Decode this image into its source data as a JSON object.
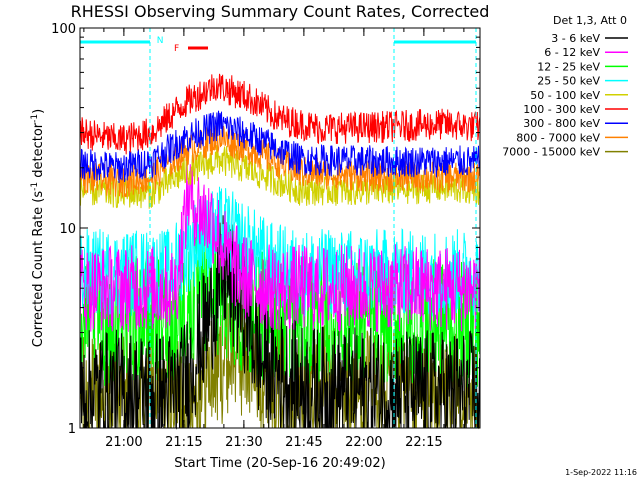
{
  "chart_data": {
    "type": "line",
    "title": "RHESSI Observing Summary Count Rates, Corrected",
    "xlabel": "Start Time (20-Sep-16 20:49:02)",
    "ylabel_main": "Corrected Count Rate (s",
    "ylabel_sup1": "-1",
    "ylabel_mid": " detector",
    "ylabel_sup2": "-1",
    "ylabel_end": ")",
    "yscale": "log",
    "ylim": [
      1,
      100
    ],
    "y_ticks": [
      {
        "value": 1,
        "label": "1"
      },
      {
        "value": 10,
        "label": "10"
      },
      {
        "value": 100,
        "label": "100"
      }
    ],
    "xlim_minutes_after_start": [
      0,
      100
    ],
    "x_ticks": [
      {
        "minute": 10.97,
        "label": "21:00"
      },
      {
        "minute": 25.97,
        "label": "21:15"
      },
      {
        "minute": 40.97,
        "label": "21:30"
      },
      {
        "minute": 55.97,
        "label": "21:45"
      },
      {
        "minute": 70.97,
        "label": "22:00"
      },
      {
        "minute": 85.97,
        "label": "22:15"
      }
    ],
    "legend_header": "Det 1,3, Att 0",
    "legend_placement": "right, outside plot",
    "series": [
      {
        "name": "3 - 6 keV",
        "color": "#000000",
        "points": [
          [
            0,
            1.5
          ],
          [
            25,
            1.5
          ],
          [
            31,
            3
          ],
          [
            36,
            6
          ],
          [
            41,
            4
          ],
          [
            45,
            2.2
          ],
          [
            55,
            1.6
          ],
          [
            80,
            1.5
          ],
          [
            100,
            1.5
          ]
        ]
      },
      {
        "name": "6 - 12 keV",
        "color": "#ff00ff",
        "points": [
          [
            0,
            5
          ],
          [
            24,
            5
          ],
          [
            27,
            15
          ],
          [
            30,
            12
          ],
          [
            33,
            11
          ],
          [
            37,
            7
          ],
          [
            42,
            5.5
          ],
          [
            48,
            5
          ],
          [
            100,
            5
          ]
        ]
      },
      {
        "name": "12 - 25 keV",
        "color": "#00ff00",
        "points": [
          [
            0,
            3.3
          ],
          [
            25,
            3.6
          ],
          [
            32,
            5
          ],
          [
            40,
            4
          ],
          [
            48,
            3.5
          ],
          [
            100,
            3.3
          ]
        ]
      },
      {
        "name": "25 - 50 keV",
        "color": "#00ffff",
        "points": [
          [
            0,
            6
          ],
          [
            22,
            6
          ],
          [
            30,
            9
          ],
          [
            36,
            10
          ],
          [
            42,
            8
          ],
          [
            48,
            6.5
          ],
          [
            55,
            6
          ],
          [
            100,
            6
          ]
        ]
      },
      {
        "name": "50 - 100 keV",
        "color": "#d0d000",
        "points": [
          [
            0,
            15.5
          ],
          [
            10,
            15
          ],
          [
            18,
            15
          ],
          [
            26,
            19
          ],
          [
            35,
            22
          ],
          [
            44,
            19
          ],
          [
            55,
            15.5
          ],
          [
            75,
            15.5
          ],
          [
            90,
            16
          ],
          [
            100,
            15.5
          ]
        ]
      },
      {
        "name": "100 - 300 keV",
        "color": "#ff0000",
        "points": [
          [
            0,
            30
          ],
          [
            10,
            27.5
          ],
          [
            18,
            30
          ],
          [
            26,
            42
          ],
          [
            34,
            52
          ],
          [
            42,
            45
          ],
          [
            50,
            35
          ],
          [
            60,
            31.5
          ],
          [
            75,
            32
          ],
          [
            90,
            33
          ],
          [
            100,
            32
          ]
        ]
      },
      {
        "name": "300 - 800 keV",
        "color": "#0000ff",
        "points": [
          [
            0,
            21
          ],
          [
            10,
            20
          ],
          [
            18,
            21.5
          ],
          [
            26,
            28
          ],
          [
            35,
            33
          ],
          [
            44,
            28
          ],
          [
            55,
            22
          ],
          [
            75,
            21.5
          ],
          [
            100,
            21.5
          ]
        ]
      },
      {
        "name": "800 - 7000 keV",
        "color": "#ff8000",
        "points": [
          [
            0,
            18
          ],
          [
            10,
            17
          ],
          [
            18,
            18
          ],
          [
            26,
            24
          ],
          [
            35,
            28.5
          ],
          [
            44,
            24
          ],
          [
            55,
            19
          ],
          [
            75,
            18
          ],
          [
            100,
            18
          ]
        ]
      },
      {
        "name": "7000 - 15000 keV",
        "color": "#808000",
        "points": [
          [
            0,
            1.4
          ],
          [
            30,
            1.6
          ],
          [
            38,
            2.5
          ],
          [
            45,
            2
          ],
          [
            55,
            1.6
          ],
          [
            100,
            1.4
          ]
        ]
      }
    ],
    "annotations": [
      {
        "text": "N",
        "color": "#00ffff"
      },
      {
        "text": "F",
        "color": "#ff0000"
      }
    ]
  },
  "timestamp": "1-Sep-2022 11:16"
}
